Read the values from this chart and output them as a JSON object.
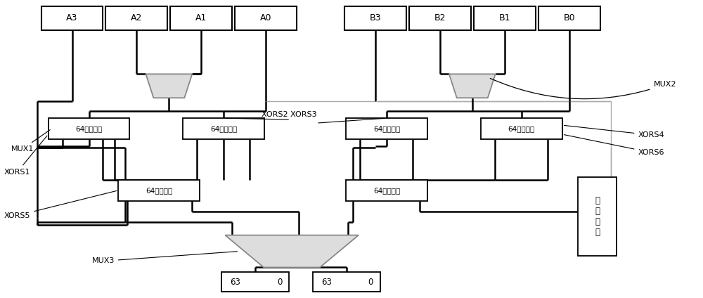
{
  "bg": "#ffffff",
  "lc": "#000000",
  "gc": "#aaaaaa",
  "xors_label": "64个异或门",
  "ctrl_label": "控\n制\n信\n号",
  "A_labels": [
    "A3",
    "A2",
    "A1",
    "A0"
  ],
  "B_labels": [
    "B3",
    "B2",
    "B1",
    "B0"
  ],
  "fig_w": 10.0,
  "fig_h": 4.24
}
